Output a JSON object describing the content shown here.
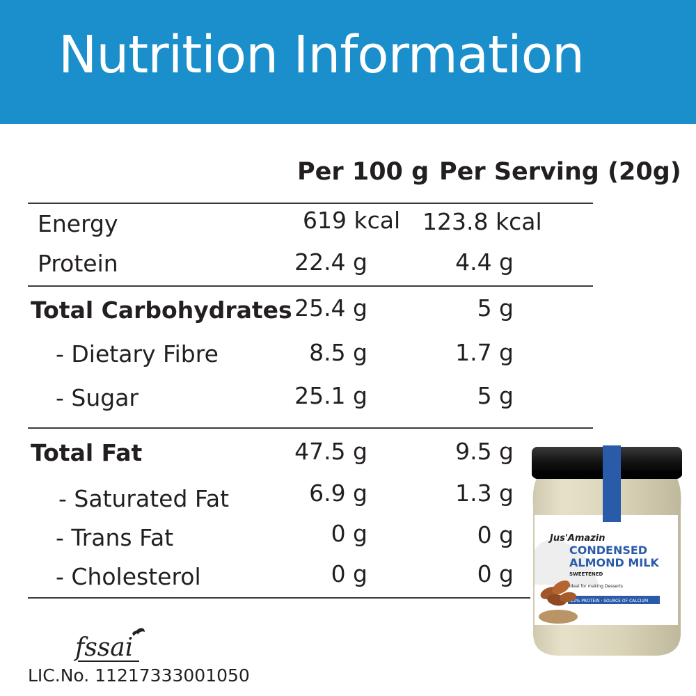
{
  "title": "Nutrition Information",
  "columns": {
    "per100": "Per 100 g",
    "perServing": "Per Serving (20g)"
  },
  "rows": [
    {
      "label": "Energy",
      "per100": "619 kcal",
      "perServing": "123.8 kcal"
    },
    {
      "label": "Protein",
      "per100": "22.4 g",
      "perServing": "4.4 g"
    },
    {
      "label": "Total Carbohydrates",
      "per100": "25.4 g",
      "perServing": "5 g"
    },
    {
      "label": "- Dietary Fibre",
      "per100": "8.5 g",
      "perServing": "1.7 g"
    },
    {
      "label": "- Sugar",
      "per100": "25.1 g",
      "perServing": "5 g"
    },
    {
      "label": "Total Fat",
      "per100": "47.5 g",
      "perServing": "9.5 g"
    },
    {
      "label": "- Saturated Fat",
      "per100": "6.9 g",
      "perServing": "1.3 g"
    },
    {
      "label": "- Trans Fat",
      "per100": "0 g",
      "perServing": "0 g"
    },
    {
      "label": "- Cholesterol",
      "per100": "0 g",
      "perServing": "0 g"
    }
  ],
  "footer": {
    "fssai": "fssai",
    "license": "LIC.No. 11217333001050"
  },
  "product": {
    "brand": "Jus'Amazin",
    "name_line1": "CONDENSED",
    "name_line2": "ALMOND MILK",
    "variant": "SWEETENED",
    "tagline": "Ideal for making Desserts",
    "claim": "22% PROTEIN · SOURCE OF CALCIUM"
  },
  "colors": {
    "header": "#1a8fcb",
    "text": "#231f20",
    "jar_band": "#2a5ba8"
  }
}
